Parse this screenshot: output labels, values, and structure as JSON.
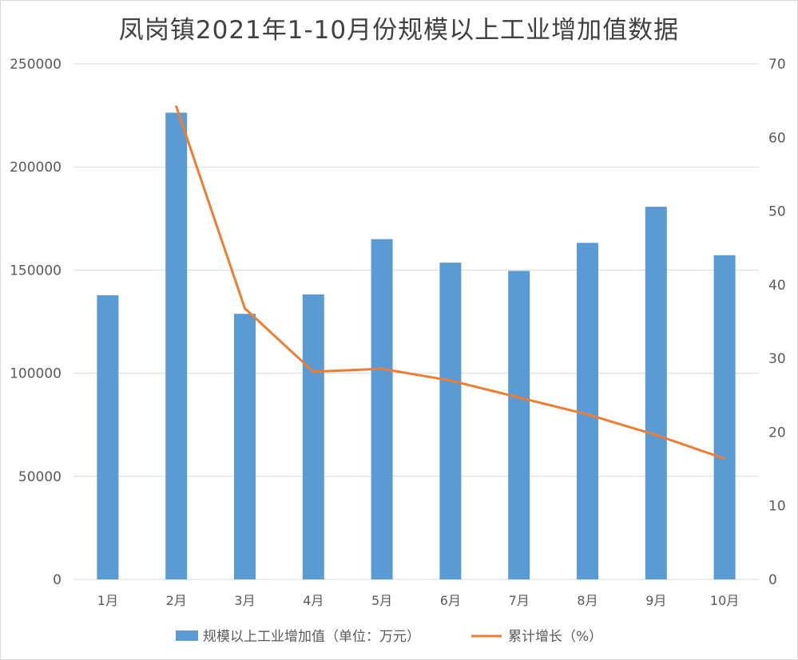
{
  "chart_data": {
    "type": "bar",
    "title": "凤岗镇2021年1-10月份规模以上工业增加值数据",
    "categories": [
      "1月",
      "2月",
      "3月",
      "4月",
      "5月",
      "6月",
      "7月",
      "8月",
      "9月",
      "10月"
    ],
    "series": [
      {
        "name": "规模以上工业增加值（单位：万元）",
        "type": "bar",
        "axis": "left",
        "color": "#5b9bd5",
        "values": [
          137800,
          226300,
          128800,
          138200,
          165000,
          153600,
          149600,
          163200,
          180700,
          157200
        ]
      },
      {
        "name": "累计增长（%）",
        "type": "line",
        "axis": "right",
        "color": "#ed7d31",
        "values": [
          null,
          64.2,
          36.8,
          28.2,
          28.6,
          27.0,
          24.7,
          22.4,
          19.6,
          16.4
        ]
      }
    ],
    "y_left": {
      "min": 0,
      "max": 250000,
      "ticks": [
        "0",
        "50000",
        "100000",
        "150000",
        "200000",
        "250000"
      ]
    },
    "y_right": {
      "min": 0,
      "max": 70,
      "ticks": [
        "0",
        "10",
        "20",
        "30",
        "40",
        "50",
        "60",
        "70"
      ]
    },
    "grid": true,
    "legend_position": "bottom"
  }
}
